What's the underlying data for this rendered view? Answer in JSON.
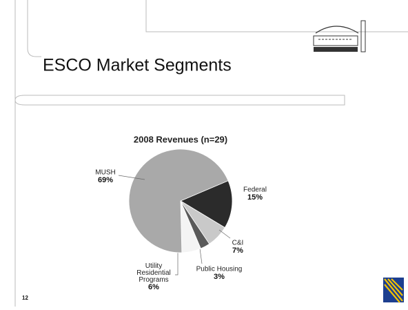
{
  "slide_title": "ESCO Market Segments",
  "page_number": "12",
  "chart_data": {
    "type": "pie",
    "title": "2008 Revenues (n=29)",
    "categories": [
      "Federal",
      "C&I",
      "Public Housing",
      "Utility Residential Programs",
      "MUSH"
    ],
    "values": [
      15,
      7,
      3,
      6,
      69
    ],
    "value_labels": [
      "15%",
      "7%",
      "3%",
      "6%",
      "69%"
    ],
    "colors": [
      "#2b2b2b",
      "#c9c9c9",
      "#5a5a5a",
      "#f4f4f4",
      "#a9a9a9"
    ]
  }
}
